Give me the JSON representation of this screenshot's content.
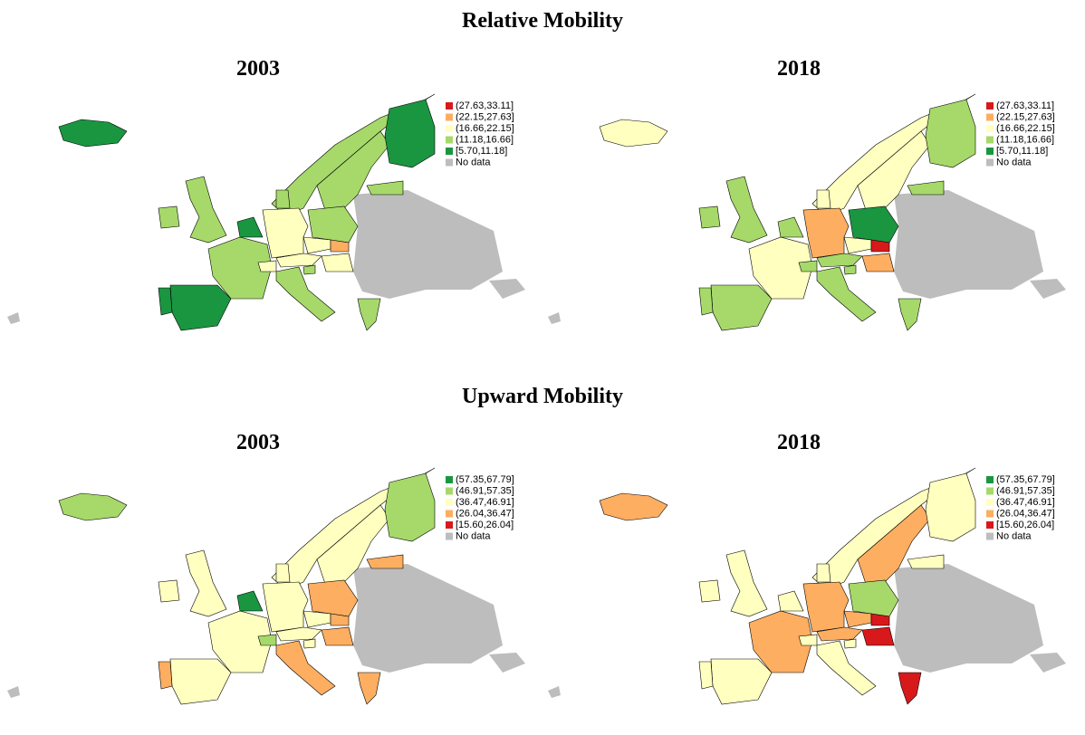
{
  "sections": [
    {
      "title": "Relative Mobility",
      "maps": [
        {
          "year": "2003",
          "legend": [
            {
              "label": "(27.63,33.11]",
              "color": "#d7191c"
            },
            {
              "label": "(22.15,27.63]",
              "color": "#fdae61"
            },
            {
              "label": "(16.66,22.15]",
              "color": "#ffffbf"
            },
            {
              "label": "(11.18,16.66]",
              "color": "#a6d96a"
            },
            {
              "label": "[5.70,11.18]",
              "color": "#1a9641"
            },
            {
              "label": "No data",
              "color": "#bdbdbd"
            }
          ]
        },
        {
          "year": "2018",
          "legend": [
            {
              "label": "(27.63,33.11]",
              "color": "#d7191c"
            },
            {
              "label": "(22.15,27.63]",
              "color": "#fdae61"
            },
            {
              "label": "(16.66,22.15]",
              "color": "#ffffbf"
            },
            {
              "label": "(11.18,16.66]",
              "color": "#a6d96a"
            },
            {
              "label": "[5.70,11.18]",
              "color": "#1a9641"
            },
            {
              "label": "No data",
              "color": "#bdbdbd"
            }
          ]
        }
      ]
    },
    {
      "title": "Upward Mobility",
      "maps": [
        {
          "year": "2003",
          "legend": [
            {
              "label": "(57.35,67.79]",
              "color": "#1a9641"
            },
            {
              "label": "(46.91,57.35]",
              "color": "#a6d96a"
            },
            {
              "label": "(36.47,46.91]",
              "color": "#ffffbf"
            },
            {
              "label": "(26.04,36.47]",
              "color": "#fdae61"
            },
            {
              "label": "[15.60,26.04]",
              "color": "#d7191c"
            },
            {
              "label": "No data",
              "color": "#bdbdbd"
            }
          ]
        },
        {
          "year": "2018",
          "legend": [
            {
              "label": "(57.35,67.79]",
              "color": "#1a9641"
            },
            {
              "label": "(46.91,57.35]",
              "color": "#a6d96a"
            },
            {
              "label": "(36.47,46.91]",
              "color": "#ffffbf"
            },
            {
              "label": "(26.04,36.47]",
              "color": "#fdae61"
            },
            {
              "label": "[15.60,26.04]",
              "color": "#d7191c"
            },
            {
              "label": "No data",
              "color": "#bdbdbd"
            }
          ]
        }
      ]
    }
  ]
}
